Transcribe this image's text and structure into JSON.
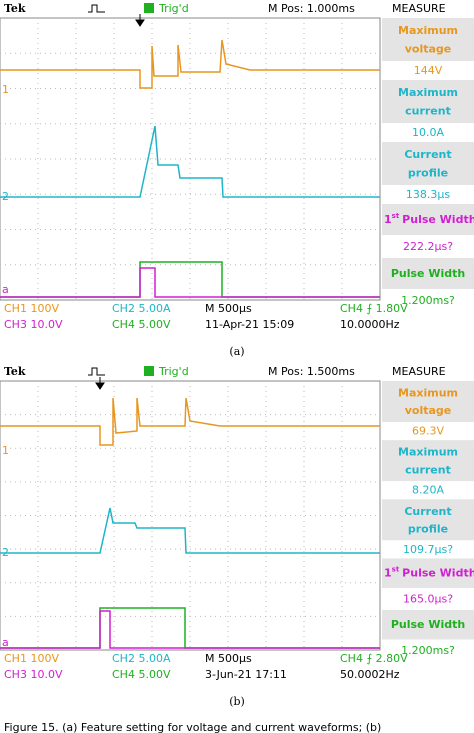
{
  "panels": [
    {
      "header": {
        "brand": "Tek",
        "trigger": "Trig'd",
        "position": "M Pos: 1.000ms",
        "menu": "MEASURE"
      },
      "channels": [
        "1",
        "2",
        "a"
      ],
      "measures": [
        {
          "label1": "Maximum",
          "label2": "voltage",
          "value": "144V"
        },
        {
          "label1": "Maximum",
          "label2": "current",
          "value": "10.0A"
        },
        {
          "label1": "Current",
          "label2": "profile",
          "value": "138.3µs"
        },
        {
          "num": "1",
          "sup": "st",
          "label": "Pulse Width",
          "value": "222.2µs?"
        },
        {
          "label": "Pulse Width",
          "value": "1.200ms?"
        }
      ],
      "status": {
        "ch1": "CH1 100V",
        "ch2": "CH2 5.00A",
        "time": "M 500µs",
        "trig": "CH4 ⨍ 1.80V",
        "ch3": "CH3 10.0V",
        "ch4": "CH4 5.00V",
        "date": "11-Apr-21 15:09",
        "freq": "10.0000Hz"
      },
      "label": "(a)"
    },
    {
      "header": {
        "brand": "Tek",
        "trigger": "Trig'd",
        "position": "M Pos: 1.500ms",
        "menu": "MEASURE"
      },
      "channels": [
        "1",
        "2",
        "a"
      ],
      "measures": [
        {
          "label1": "Maximum",
          "label2": "voltage",
          "value": "69.3V"
        },
        {
          "label1": "Maximum",
          "label2": "current",
          "value": "8.20A"
        },
        {
          "label1": "Current",
          "label2": "profile",
          "value": "109.7µs?"
        },
        {
          "num": "1",
          "sup": "st",
          "label": "Pulse Width",
          "value": "165.0µs?"
        },
        {
          "label": "Pulse Width",
          "value": "1.200ms?"
        }
      ],
      "status": {
        "ch1": "CH1 100V",
        "ch2": "CH2 5.00A",
        "time": "M 500µs",
        "trig": "CH4 ⨍ 2.80V",
        "ch3": "CH3 10.0V",
        "ch4": "CH4 5.00V",
        "date": "3-Jun-21 17:11",
        "freq": "50.0002Hz"
      },
      "label": "(b)"
    }
  ],
  "caption": "Figure 15. (a) Feature setting for voltage and current waveforms; (b)"
}
